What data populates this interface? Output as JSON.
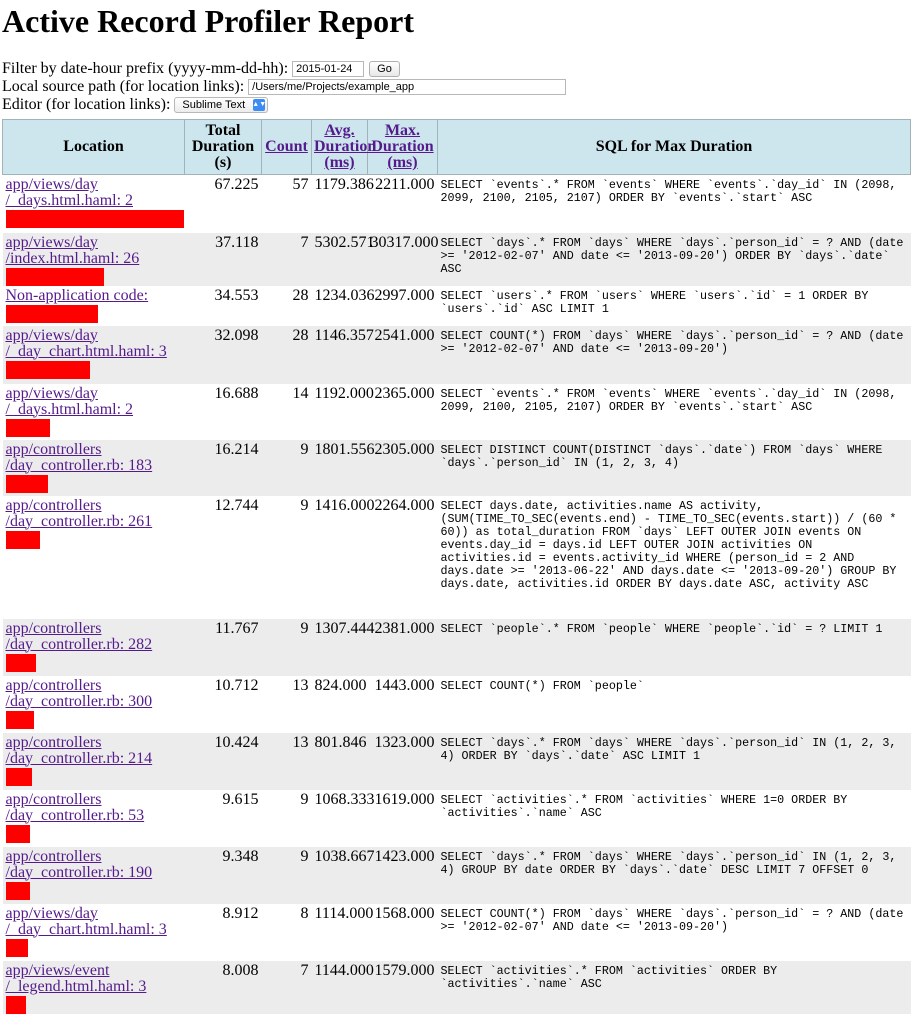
{
  "title": "Active Record Profiler Report",
  "filter": {
    "label": "Filter by date-hour prefix (yyyy-mm-dd-hh):",
    "value": "2015-01-24",
    "button": "Go"
  },
  "source_path": {
    "label": "Local source path (for location links):",
    "value": "/Users/me/Projects/example_app"
  },
  "editor": {
    "label": "Editor (for location links):",
    "value": "Sublime Text"
  },
  "table": {
    "headers": {
      "location": "Location",
      "total_duration": "Total Duration (s)",
      "count": "Count",
      "avg_duration": "Avg. Duration (ms)",
      "max_duration": "Max. Duration (ms)",
      "sql": "SQL for Max Duration"
    },
    "rows": [
      {
        "loc1": "app/views/day",
        "loc2": "/_days.html.haml: 2",
        "total": "67.225",
        "count": "57",
        "avg": "1179.386",
        "max": "2211.000",
        "sql": "SELECT `events`.* FROM `events` WHERE `events`.`day_id` IN (2098, 2099, 2100, 2105, 2107) ORDER BY `events`.`start` ASC"
      },
      {
        "loc1": "app/views/day",
        "loc2": "/index.html.haml: 26",
        "total": "37.118",
        "count": "7",
        "avg": "5302.571",
        "max": "30317.000",
        "sql": "SELECT `days`.* FROM `days` WHERE `days`.`person_id` = ? AND (date >= '2012-02-07' AND date <= '2013-09-20') ORDER BY `days`.`date` ASC"
      },
      {
        "loc1": "Non-application code:",
        "loc2": "",
        "total": "34.553",
        "count": "28",
        "avg": "1234.036",
        "max": "2997.000",
        "sql": "SELECT `users`.* FROM `users` WHERE `users`.`id` = 1 ORDER BY `users`.`id` ASC LIMIT 1"
      },
      {
        "loc1": "app/views/day",
        "loc2": "/_day_chart.html.haml: 3",
        "total": "32.098",
        "count": "28",
        "avg": "1146.357",
        "max": "2541.000",
        "sql": "SELECT COUNT(*) FROM `days` WHERE `days`.`person_id` = ? AND (date >= '2012-02-07' AND date <= '2013-09-20')"
      },
      {
        "loc1": "app/views/day",
        "loc2": "/_days.html.haml: 2",
        "total": "16.688",
        "count": "14",
        "avg": "1192.000",
        "max": "2365.000",
        "sql": "SELECT `events`.* FROM `events` WHERE `events`.`day_id` IN (2098, 2099, 2100, 2105, 2107) ORDER BY `events`.`start` ASC"
      },
      {
        "loc1": "app/controllers",
        "loc2": "/day_controller.rb: 183",
        "total": "16.214",
        "count": "9",
        "avg": "1801.556",
        "max": "2305.000",
        "sql": "SELECT DISTINCT COUNT(DISTINCT `days`.`date`) FROM `days` WHERE `days`.`person_id` IN (1, 2, 3, 4)"
      },
      {
        "loc1": "app/controllers",
        "loc2": "/day_controller.rb: 261",
        "total": "12.744",
        "count": "9",
        "avg": "1416.000",
        "max": "2264.000",
        "sql": "SELECT days.date, activities.name AS activity, (SUM(TIME_TO_SEC(events.end) - TIME_TO_SEC(events.start)) / (60 * 60)) as total_duration FROM `days` LEFT OUTER JOIN events ON events.day_id = days.id LEFT OUTER JOIN activities ON activities.id = events.activity_id WHERE (person_id = 2 AND days.date >= '2013-06-22' AND days.date <= '2013-09-20') GROUP BY days.date, activities.id ORDER BY days.date ASC, activity ASC"
      },
      {
        "loc1": "app/controllers",
        "loc2": "/day_controller.rb: 282",
        "total": "11.767",
        "count": "9",
        "avg": "1307.444",
        "max": "2381.000",
        "sql": "SELECT `people`.* FROM `people` WHERE `people`.`id` = ? LIMIT 1"
      },
      {
        "loc1": "app/controllers",
        "loc2": "/day_controller.rb: 300",
        "total": "10.712",
        "count": "13",
        "avg": "824.000",
        "max": "1443.000",
        "sql": "SELECT COUNT(*) FROM `people`"
      },
      {
        "loc1": "app/controllers",
        "loc2": "/day_controller.rb: 214",
        "total": "10.424",
        "count": "13",
        "avg": "801.846",
        "max": "1323.000",
        "sql": "SELECT `days`.* FROM `days` WHERE `days`.`person_id` IN (1, 2, 3, 4) ORDER BY `days`.`date` ASC LIMIT 1"
      },
      {
        "loc1": "app/controllers",
        "loc2": "/day_controller.rb: 53",
        "total": "9.615",
        "count": "9",
        "avg": "1068.333",
        "max": "1619.000",
        "sql": "SELECT `activities`.* FROM `activities` WHERE 1=0 ORDER BY `activities`.`name` ASC"
      },
      {
        "loc1": "app/controllers",
        "loc2": "/day_controller.rb: 190",
        "total": "9.348",
        "count": "9",
        "avg": "1038.667",
        "max": "1423.000",
        "sql": "SELECT `days`.* FROM `days` WHERE `days`.`person_id` IN (1, 2, 3, 4) GROUP BY date ORDER BY `days`.`date` DESC LIMIT 7 OFFSET 0"
      },
      {
        "loc1": "app/views/day",
        "loc2": "/_day_chart.html.haml: 3",
        "total": "8.912",
        "count": "8",
        "avg": "1114.000",
        "max": "1568.000",
        "sql": "SELECT COUNT(*) FROM `days` WHERE `days`.`person_id` = ? AND (date >= '2012-02-07' AND date <= '2013-09-20')"
      },
      {
        "loc1": "app/views/event",
        "loc2": "/_legend.html.haml: 3",
        "total": "8.008",
        "count": "7",
        "avg": "1144.000",
        "max": "1579.000",
        "sql": "SELECT `activities`.* FROM `activities` ORDER BY `activities`.`name` ASC"
      }
    ]
  },
  "colors": {
    "header_bg": "#cde6ee",
    "link": "#551a8b",
    "redaction": "#ff0000",
    "alt_row": "#ececec"
  }
}
